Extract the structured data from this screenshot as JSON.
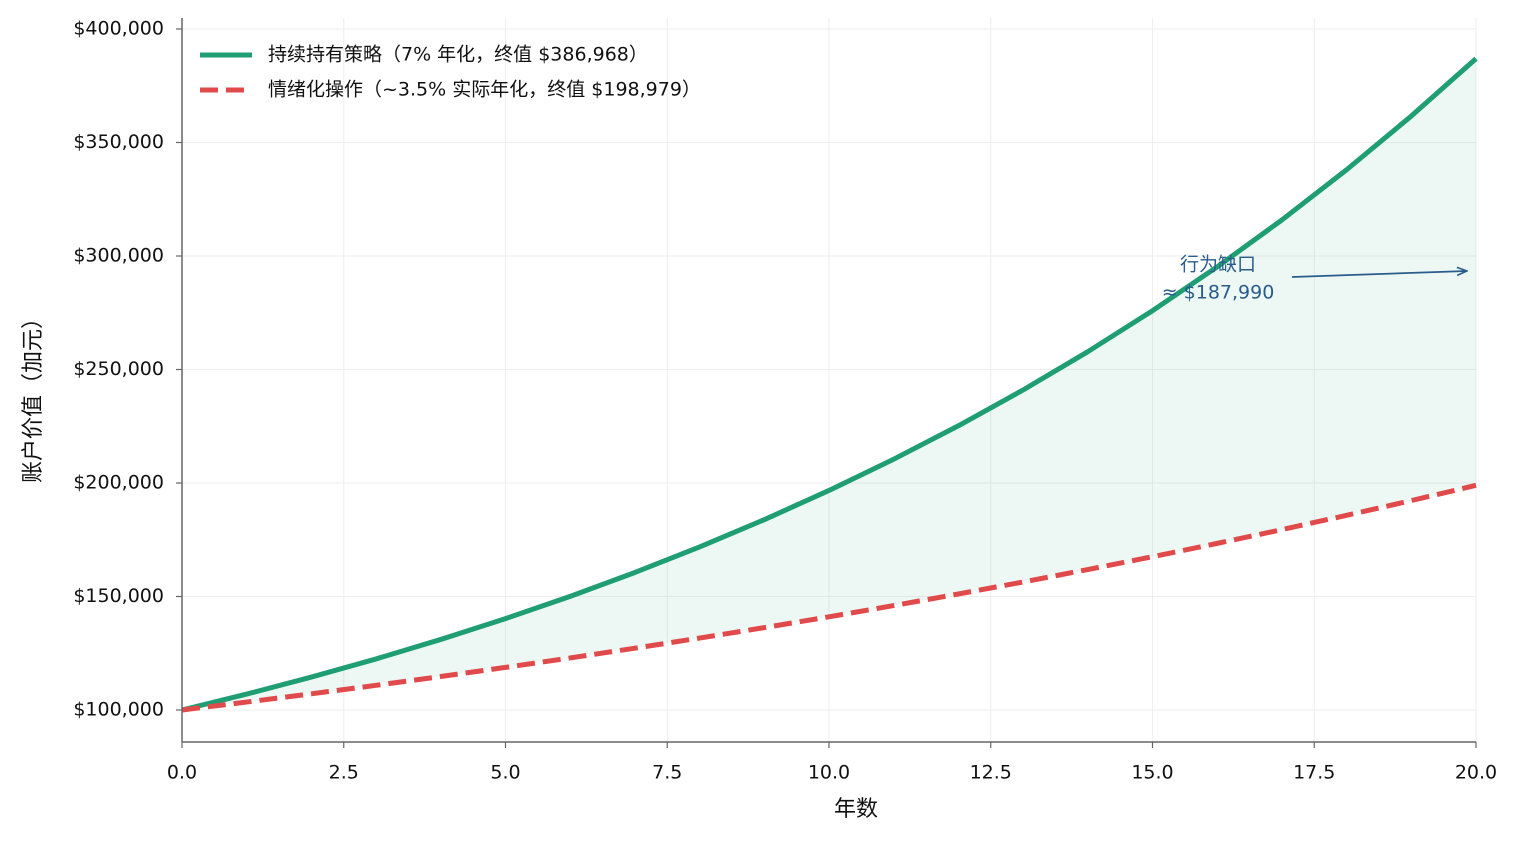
{
  "chart_data": {
    "type": "line",
    "y_label": "账户价值（加元）",
    "x_label": "年数",
    "x": [
      0,
      1,
      2,
      3,
      4,
      5,
      6,
      7,
      8,
      9,
      10,
      11,
      12,
      13,
      14,
      15,
      16,
      17,
      18,
      19,
      20
    ],
    "series": [
      {
        "name": "持续持有策略（7% 年化，终值 $386,968）",
        "color": "#1f9e73",
        "dash": false,
        "values": [
          100000,
          107000,
          114490,
          122504,
          131080,
          140255,
          150073,
          160578,
          171819,
          183846,
          196715,
          210485,
          225219,
          240985,
          257853,
          275903,
          295216,
          315882,
          337993,
          361653,
          386968
        ]
      },
      {
        "name": "情绪化操作（~3.5% 实际年化，终值 $198,979）",
        "color": "#e04a4a",
        "dash": true,
        "values": [
          100000,
          103500,
          107123,
          110872,
          114752,
          118769,
          122926,
          127228,
          131681,
          136290,
          141060,
          145997,
          151107,
          156396,
          161869,
          167535,
          173399,
          179468,
          185749,
          192250,
          198979
        ]
      }
    ],
    "fill_between": {
      "color": "#1f9e73",
      "opacity": 0.08
    },
    "annotation": [
      "行为缺口",
      "≈ $187,990"
    ],
    "annotation_color": "#2a5d8c",
    "xlim": [
      0,
      20
    ],
    "ylim": [
      85900,
      404850
    ],
    "xticks": [
      {
        "value": 0,
        "label": "0.0"
      },
      {
        "value": 2.5,
        "label": "2.5"
      },
      {
        "value": 5,
        "label": "5.0"
      },
      {
        "value": 7.5,
        "label": "7.5"
      },
      {
        "value": 10,
        "label": "10.0"
      },
      {
        "value": 12.5,
        "label": "12.5"
      },
      {
        "value": 15,
        "label": "15.0"
      },
      {
        "value": 17.5,
        "label": "17.5"
      },
      {
        "value": 20,
        "label": "20.0"
      }
    ],
    "yticks": [
      {
        "value": 100000,
        "label": "$100,000"
      },
      {
        "value": 150000,
        "label": "$150,000"
      },
      {
        "value": 200000,
        "label": "$200,000"
      },
      {
        "value": 250000,
        "label": "$250,000"
      },
      {
        "value": 300000,
        "label": "$300,000"
      },
      {
        "value": 350000,
        "label": "$350,000"
      },
      {
        "value": 400000,
        "label": "$400,000"
      }
    ],
    "grid": true,
    "legend": "upper left"
  }
}
